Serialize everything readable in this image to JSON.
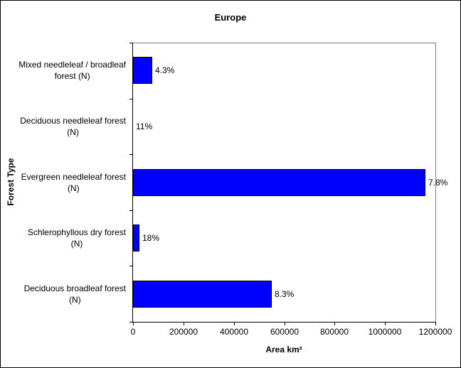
{
  "window": {
    "background": "#ffffff",
    "border_color": "#000000"
  },
  "chart_data": {
    "type": "bar",
    "orientation": "horizontal",
    "title": "Europe",
    "xlabel": "Area km²",
    "ylabel": "Forest Type",
    "categories": [
      "Mixed needleleaf / broadleaf\nforest (N)",
      "Deciduous needleleaf forest\n(N)",
      "Evergreen needleleaf forest\n(N)",
      "Schlerophyllous dry forest\n(N)",
      "Deciduous broadleaf forest\n(N)"
    ],
    "values": [
      75000,
      0,
      1160000,
      25000,
      550000
    ],
    "data_labels": [
      "4.3%",
      "11%",
      "7.8%",
      "18%",
      "8.3%"
    ],
    "xlim": [
      0,
      1200000
    ],
    "x_ticks": [
      0,
      200000,
      400000,
      600000,
      800000,
      1000000,
      1200000
    ],
    "x_tick_labels": [
      "0",
      "200000",
      "400000",
      "600000",
      "800000",
      "1000000",
      "1200000"
    ],
    "bar_color": "#0000ff",
    "bar_border_color": "#000000",
    "plot_border_color": "#808080",
    "axis_color": "#000000",
    "grid": false,
    "legend": false
  }
}
